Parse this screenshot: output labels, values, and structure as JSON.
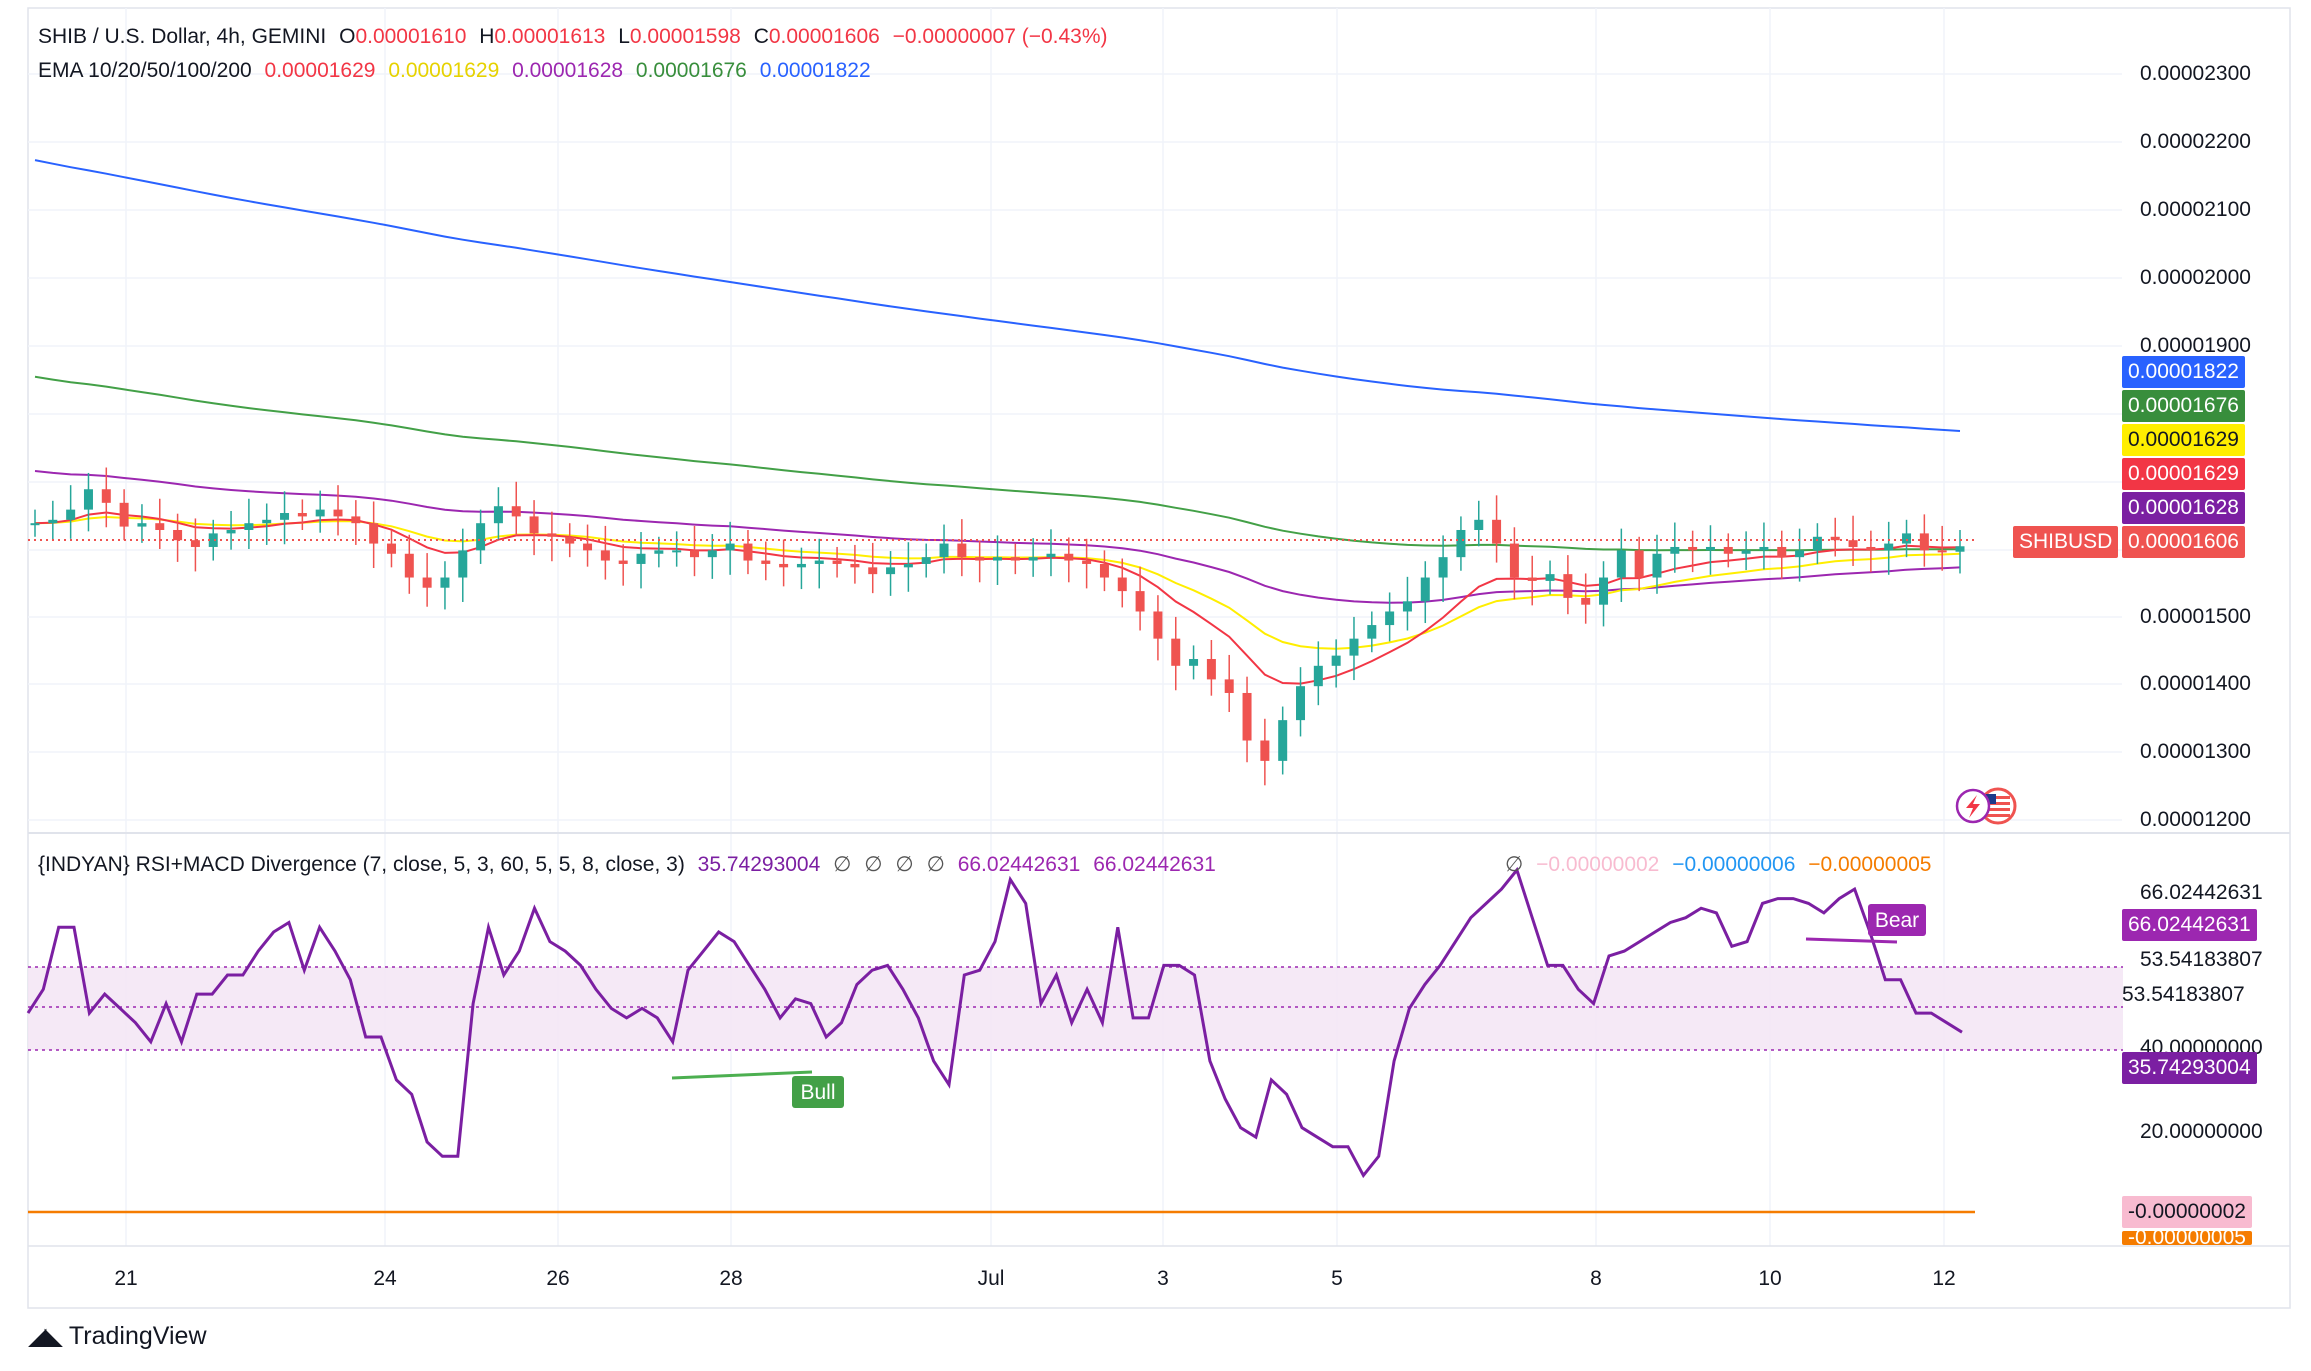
{
  "header": {
    "symbol_line": "SHIB / U.S. Dollar, 4h, GEMINI",
    "ohlc": {
      "o_label": "O",
      "o": "0.00001610",
      "h_label": "H",
      "h": "0.00001613",
      "l_label": "L",
      "l": "0.00001598",
      "c_label": "C",
      "c": "0.00001606",
      "change": "−0.00000007 (−0.43%)"
    },
    "ema_label": "EMA 10/20/50/100/200",
    "ema_values": [
      "0.00001629",
      "0.00001629",
      "0.00001628",
      "0.00001676",
      "0.00001822"
    ],
    "indicator_label": "{INDYAN} RSI+MACD Divergence (7, close, 5, 3, 60, 5, 5, 8, close, 3)",
    "indicator_value": "35.74293004",
    "indicator_symbols": [
      "∅",
      "∅",
      "∅",
      "∅"
    ],
    "indicator_v2": "66.02442631",
    "indicator_v3": "66.02442631",
    "indicator_symbol2": "∅",
    "macd_values": [
      "−0.00000002",
      "−0.00000006",
      "−0.00000005"
    ]
  },
  "colors": {
    "up": "#26a69a",
    "down": "#ef5350",
    "ema10": "#f23645",
    "ema20": "#ffee00",
    "ema50": "#9c27b0",
    "ema100": "#43a047",
    "ema200": "#2962ff",
    "rsi": "#7b1fa2"
  },
  "price_axis": {
    "ticks": [
      "0.00002300",
      "0.00002200",
      "0.00002100",
      "0.00002000",
      "0.00001900",
      "0.00001500",
      "0.00001400",
      "0.00001300",
      "0.00001200"
    ],
    "tags": [
      {
        "text": "0.00001822",
        "color": "#2962ff"
      },
      {
        "text": "0.00001676",
        "color": "#388e3c"
      },
      {
        "text": "0.00001629",
        "color": "#ffee00",
        "text_color": "#131722"
      },
      {
        "text": "0.00001629",
        "color": "#f23645"
      },
      {
        "text": "0.00001628",
        "color": "#7b1fa2"
      },
      {
        "text": "0.00001606",
        "color": "#ef5350"
      }
    ],
    "symbol_tag": "SHIBUSD"
  },
  "indicator_axis": {
    "ticks": [
      "66.02442631",
      "53.54183807",
      "53.54183807",
      "40.00000000",
      "20.00000000"
    ],
    "tags": [
      {
        "text": "66.02442631",
        "color": "#9c27b0"
      },
      {
        "text": "35.74293004",
        "color": "#7b1fa2"
      },
      {
        "text": "-0.00000002",
        "color": "#f8bbd0",
        "text_color": "#131722"
      },
      {
        "text": "-0.00000005",
        "color": "#f57c00"
      }
    ]
  },
  "time_axis": [
    "21",
    "24",
    "26",
    "28",
    "Jul",
    "3",
    "5",
    "8",
    "10",
    "12"
  ],
  "divergence_labels": {
    "bull": "Bull",
    "bear": "Bear"
  },
  "brand": "TradingView",
  "chart_data": [
    {
      "type": "candlestick",
      "title": "SHIB / U.S. Dollar, 4h, GEMINI",
      "x_ticks": [
        "21",
        "24",
        "26",
        "28",
        "Jul",
        "3",
        "5",
        "8",
        "10",
        "12"
      ],
      "ylim": [
        1.18e-05,
        2.32e-05
      ],
      "close_series": [
        1.64e-05,
        1.645e-05,
        1.66e-05,
        1.69e-05,
        1.67e-05,
        1.635e-05,
        1.64e-05,
        1.63e-05,
        1.615e-05,
        1.605e-05,
        1.625e-05,
        1.63e-05,
        1.64e-05,
        1.645e-05,
        1.655e-05,
        1.65e-05,
        1.66e-05,
        1.65e-05,
        1.64e-05,
        1.61e-05,
        1.595e-05,
        1.56e-05,
        1.545e-05,
        1.56e-05,
        1.6e-05,
        1.64e-05,
        1.665e-05,
        1.65e-05,
        1.625e-05,
        1.62e-05,
        1.61e-05,
        1.6e-05,
        1.585e-05,
        1.58e-05,
        1.595e-05,
        1.6e-05,
        1.6e-05,
        1.59e-05,
        1.6e-05,
        1.61e-05,
        1.585e-05,
        1.58e-05,
        1.575e-05,
        1.58e-05,
        1.585e-05,
        1.58e-05,
        1.575e-05,
        1.565e-05,
        1.575e-05,
        1.58e-05,
        1.59e-05,
        1.61e-05,
        1.59e-05,
        1.585e-05,
        1.59e-05,
        1.585e-05,
        1.59e-05,
        1.595e-05,
        1.585e-05,
        1.58e-05,
        1.56e-05,
        1.54e-05,
        1.51e-05,
        1.47e-05,
        1.43e-05,
        1.44e-05,
        1.41e-05,
        1.39e-05,
        1.32e-05,
        1.29e-05,
        1.35e-05,
        1.4e-05,
        1.43e-05,
        1.445e-05,
        1.47e-05,
        1.49e-05,
        1.51e-05,
        1.525e-05,
        1.56e-05,
        1.59e-05,
        1.63e-05,
        1.645e-05,
        1.61e-05,
        1.56e-05,
        1.555e-05,
        1.565e-05,
        1.53e-05,
        1.52e-05,
        1.56e-05,
        1.6e-05,
        1.56e-05,
        1.595e-05,
        1.605e-05,
        1.6e-05,
        1.605e-05,
        1.595e-05,
        1.6e-05,
        1.605e-05,
        1.59e-05,
        1.6e-05,
        1.62e-05,
        1.615e-05,
        1.605e-05,
        1.6e-05,
        1.61e-05,
        1.625e-05,
        1.6e-05,
        1.598e-05,
        1.606e-05
      ]
    },
    {
      "type": "line",
      "title": "{INDYAN} RSI+MACD Divergence (7, close, 5, 3, 60, 5, 5, 8, close, 3)",
      "ylim": [
        -5e-08,
        70
      ],
      "values": [
        40,
        45,
        58,
        58,
        40,
        44,
        41,
        38,
        34,
        42,
        34,
        44,
        44,
        48,
        48,
        53,
        57,
        59,
        49,
        58,
        53,
        47,
        35,
        35,
        26,
        23,
        13,
        10,
        10,
        42,
        58,
        48,
        53,
        62,
        55,
        53,
        50,
        45,
        41,
        39,
        41,
        39,
        34,
        49,
        53,
        57,
        55,
        50,
        45,
        39,
        43,
        42,
        35,
        38,
        46,
        49,
        50,
        45,
        39,
        30,
        25,
        48,
        49,
        55,
        68,
        63,
        42,
        48,
        38,
        45,
        38,
        58,
        39,
        39,
        50,
        50,
        48,
        30,
        22,
        16,
        14,
        26,
        23,
        16,
        14,
        12,
        12,
        6,
        10,
        30,
        41,
        46,
        50,
        55,
        60,
        63,
        66,
        70,
        60,
        50,
        50,
        45,
        42,
        52,
        53,
        55,
        57,
        59,
        60,
        62,
        61,
        54,
        55,
        63,
        64,
        64,
        63,
        61,
        64,
        66,
        57,
        47,
        47,
        40,
        40,
        38,
        36
      ]
    }
  ]
}
